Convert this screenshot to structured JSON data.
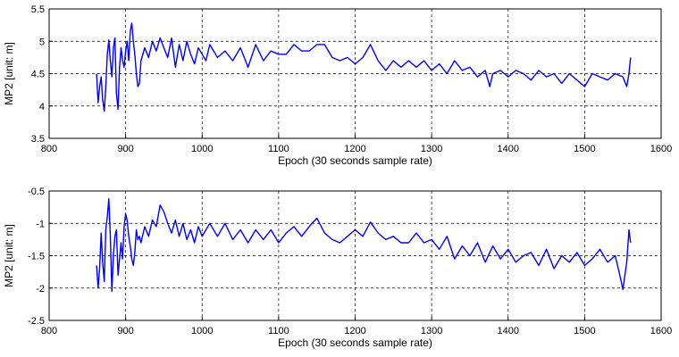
{
  "colors": {
    "trace": "#0000ff",
    "axes": "#000000",
    "background": "#ffffff"
  },
  "chart_data": [
    {
      "type": "line",
      "xlabel": "Epoch (30 seconds sample rate)",
      "ylabel": "MP2 [unit: m]",
      "xlim": [
        800,
        1600
      ],
      "ylim": [
        3.5,
        5.5
      ],
      "xticks": [
        800,
        900,
        1000,
        1100,
        1200,
        1300,
        1400,
        1500,
        1600
      ],
      "yticks": [
        3.5,
        4,
        4.5,
        5,
        5.5
      ],
      "xtick_labels": [
        "800",
        "900",
        "1000",
        "1100",
        "1200",
        "1300",
        "1400",
        "1500",
        "1600"
      ],
      "ytick_labels": [
        "3.5",
        "4",
        "4.5",
        "5",
        "5.5"
      ],
      "grid": true,
      "series": [
        {
          "x": [
            862,
            864,
            866,
            868,
            870,
            872,
            874,
            876,
            878,
            880,
            882,
            884,
            886,
            888,
            890,
            892,
            894,
            896,
            898,
            900,
            902,
            904,
            906,
            908,
            910,
            912,
            914,
            916,
            918,
            920,
            925,
            930,
            935,
            940,
            945,
            950,
            955,
            960,
            965,
            970,
            975,
            980,
            985,
            990,
            995,
            1000,
            1005,
            1010,
            1020,
            1030,
            1040,
            1050,
            1060,
            1070,
            1080,
            1090,
            1100,
            1110,
            1120,
            1130,
            1140,
            1150,
            1160,
            1170,
            1180,
            1190,
            1200,
            1210,
            1220,
            1230,
            1240,
            1250,
            1260,
            1270,
            1280,
            1290,
            1300,
            1310,
            1320,
            1330,
            1340,
            1350,
            1360,
            1370,
            1376,
            1380,
            1390,
            1400,
            1410,
            1420,
            1430,
            1440,
            1450,
            1460,
            1470,
            1480,
            1490,
            1500,
            1510,
            1520,
            1530,
            1540,
            1550,
            1555,
            1558,
            1560
          ],
          "y": [
            4.5,
            4.05,
            4.3,
            4.45,
            4.1,
            3.92,
            4.3,
            4.8,
            5.02,
            4.7,
            4.45,
            4.9,
            5.05,
            4.2,
            3.95,
            4.6,
            4.9,
            4.7,
            4.6,
            4.85,
            5.0,
            4.7,
            5.15,
            5.28,
            5.0,
            4.8,
            4.5,
            4.3,
            4.35,
            4.7,
            4.9,
            4.75,
            5.0,
            4.85,
            5.05,
            4.9,
            4.75,
            5.05,
            4.6,
            4.95,
            4.7,
            5.0,
            4.8,
            4.65,
            4.9,
            4.8,
            4.7,
            4.95,
            4.75,
            4.85,
            4.7,
            4.9,
            4.6,
            4.95,
            4.7,
            4.85,
            4.8,
            4.8,
            4.95,
            4.85,
            4.85,
            4.95,
            4.95,
            4.75,
            4.7,
            4.75,
            4.65,
            4.75,
            4.95,
            4.7,
            4.55,
            4.7,
            4.6,
            4.7,
            4.6,
            4.7,
            4.55,
            4.65,
            4.5,
            4.7,
            4.55,
            4.6,
            4.45,
            4.55,
            4.3,
            4.5,
            4.55,
            4.45,
            4.55,
            4.5,
            4.4,
            4.55,
            4.45,
            4.5,
            4.35,
            4.5,
            4.4,
            4.3,
            4.5,
            4.45,
            4.4,
            4.5,
            4.45,
            4.3,
            4.5,
            4.75
          ]
        }
      ]
    },
    {
      "type": "line",
      "xlabel": "Epoch (30 seconds sample rate)",
      "ylabel": "MP2 [unit: m]",
      "xlim": [
        800,
        1600
      ],
      "ylim": [
        -2.5,
        -0.5
      ],
      "xticks": [
        800,
        900,
        1000,
        1100,
        1200,
        1300,
        1400,
        1500,
        1600
      ],
      "yticks": [
        -2.5,
        -2,
        -1.5,
        -1,
        -0.5
      ],
      "xtick_labels": [
        "800",
        "900",
        "1000",
        "1100",
        "1200",
        "1300",
        "1400",
        "1500",
        "1600"
      ],
      "ytick_labels": [
        "-2.5",
        "-2",
        "-1.5",
        "-1",
        "-0.5"
      ],
      "grid": true,
      "series": [
        {
          "x": [
            862,
            864,
            866,
            868,
            870,
            872,
            874,
            876,
            878,
            880,
            882,
            884,
            886,
            888,
            890,
            892,
            894,
            896,
            898,
            900,
            902,
            904,
            906,
            908,
            910,
            912,
            914,
            916,
            918,
            920,
            925,
            930,
            935,
            940,
            945,
            950,
            955,
            960,
            965,
            970,
            975,
            980,
            985,
            990,
            995,
            1000,
            1005,
            1010,
            1020,
            1030,
            1040,
            1050,
            1060,
            1070,
            1080,
            1090,
            1100,
            1110,
            1120,
            1130,
            1140,
            1150,
            1160,
            1170,
            1180,
            1190,
            1200,
            1210,
            1220,
            1230,
            1240,
            1250,
            1260,
            1270,
            1280,
            1290,
            1300,
            1310,
            1320,
            1330,
            1340,
            1350,
            1360,
            1370,
            1376,
            1380,
            1390,
            1400,
            1410,
            1420,
            1430,
            1440,
            1450,
            1460,
            1470,
            1480,
            1490,
            1500,
            1510,
            1520,
            1530,
            1540,
            1545,
            1550,
            1555,
            1558,
            1560
          ],
          "y": [
            -1.65,
            -2.0,
            -1.7,
            -1.15,
            -1.6,
            -1.9,
            -1.1,
            -0.9,
            -0.62,
            -1.2,
            -2.05,
            -1.5,
            -1.2,
            -1.1,
            -1.8,
            -1.55,
            -1.3,
            -1.55,
            -1.05,
            -0.85,
            -0.95,
            -1.2,
            -1.35,
            -1.55,
            -1.65,
            -1.45,
            -1.1,
            -1.25,
            -1.2,
            -1.3,
            -1.05,
            -1.2,
            -0.95,
            -1.05,
            -0.72,
            -0.82,
            -1.0,
            -1.15,
            -0.95,
            -1.2,
            -1.0,
            -1.25,
            -1.1,
            -1.3,
            -1.05,
            -1.2,
            -1.1,
            -1.0,
            -1.2,
            -1.0,
            -1.25,
            -1.1,
            -1.3,
            -1.1,
            -1.25,
            -1.1,
            -1.3,
            -1.15,
            -1.05,
            -1.2,
            -1.05,
            -0.92,
            -1.15,
            -1.25,
            -1.3,
            -1.2,
            -1.1,
            -1.2,
            -0.98,
            -1.15,
            -1.25,
            -1.2,
            -1.3,
            -1.3,
            -1.15,
            -1.3,
            -1.25,
            -1.4,
            -1.2,
            -1.55,
            -1.35,
            -1.5,
            -1.3,
            -1.6,
            -1.45,
            -1.35,
            -1.55,
            -1.4,
            -1.6,
            -1.5,
            -1.45,
            -1.65,
            -1.4,
            -1.7,
            -1.5,
            -1.6,
            -1.45,
            -1.65,
            -1.55,
            -1.4,
            -1.6,
            -1.5,
            -1.75,
            -2.02,
            -1.6,
            -1.1,
            -1.3
          ]
        }
      ]
    }
  ]
}
